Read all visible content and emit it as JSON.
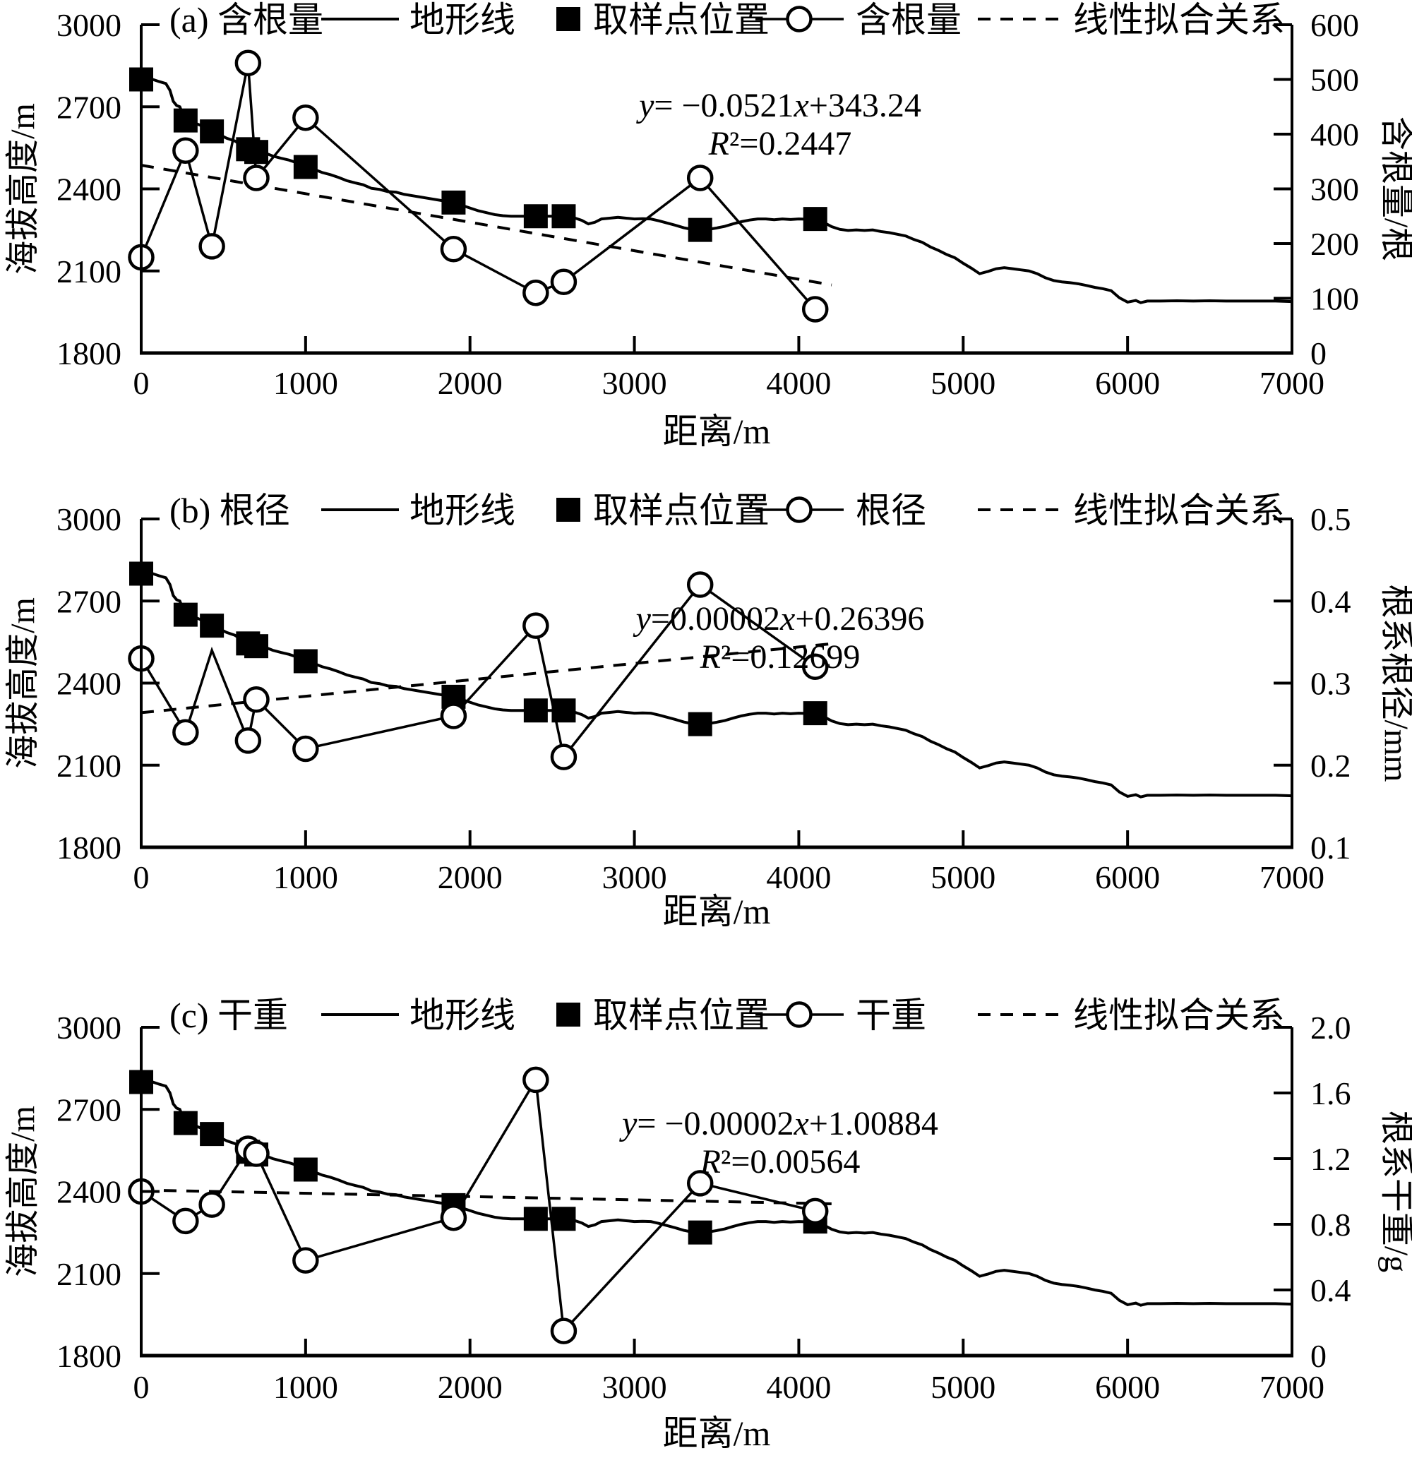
{
  "figure": {
    "background": "#ffffff",
    "ink_color": "#000000"
  },
  "shared": {
    "x_axis": {
      "label": "距离/m",
      "min": 0,
      "max": 7000,
      "ticks": [
        0,
        1000,
        2000,
        3000,
        4000,
        5000,
        6000,
        7000
      ]
    },
    "left_axis": {
      "label": "海拔高度/m",
      "min": 1800,
      "max": 3000,
      "ticks": [
        3000,
        2700,
        2400,
        2100,
        1800
      ]
    },
    "legend_terrain_label": "地形线",
    "legend_samples_label": "取样点位置",
    "legend_fit_label": "线性拟合关系",
    "terrain": {
      "x": [
        0,
        70,
        110,
        150,
        175,
        195,
        215,
        235,
        255,
        270,
        300,
        330,
        370,
        400,
        430,
        470,
        520,
        570,
        620,
        650,
        700,
        750,
        800,
        850,
        900,
        950,
        1000,
        1050,
        1100,
        1150,
        1200,
        1250,
        1300,
        1350,
        1400,
        1450,
        1500,
        1550,
        1600,
        1650,
        1700,
        1750,
        1800,
        1850,
        1900,
        1950,
        2000,
        2050,
        2100,
        2150,
        2200,
        2250,
        2350,
        2450,
        2570,
        2620,
        2680,
        2720,
        2760,
        2800,
        2850,
        2900,
        2950,
        3000,
        3050,
        3100,
        3150,
        3200,
        3250,
        3300,
        3350,
        3400,
        3450,
        3500,
        3550,
        3600,
        3650,
        3700,
        3750,
        3800,
        3850,
        3900,
        3950,
        4000,
        4050,
        4100,
        4150,
        4200,
        4250,
        4300,
        4350,
        4400,
        4450,
        4500,
        4550,
        4600,
        4650,
        4700,
        4750,
        4800,
        4850,
        4900,
        4950,
        5000,
        5050,
        5100,
        5150,
        5200,
        5250,
        5300,
        5350,
        5400,
        5450,
        5500,
        5550,
        5600,
        5650,
        5700,
        5750,
        5800,
        5850,
        5900,
        5950,
        6000,
        6050,
        6080,
        6120,
        6200,
        6300,
        6400,
        6500,
        6600,
        6700,
        6800,
        6900,
        7000
      ],
      "elevation": [
        2800,
        2800,
        2792,
        2785,
        2760,
        2720,
        2705,
        2700,
        2670,
        2650,
        2643,
        2640,
        2630,
        2620,
        2610,
        2600,
        2585,
        2575,
        2555,
        2545,
        2535,
        2532,
        2520,
        2512,
        2505,
        2495,
        2480,
        2472,
        2460,
        2452,
        2442,
        2430,
        2422,
        2415,
        2402,
        2398,
        2390,
        2388,
        2380,
        2375,
        2370,
        2365,
        2360,
        2355,
        2350,
        2340,
        2330,
        2320,
        2313,
        2306,
        2302,
        2300,
        2300,
        2300,
        2300,
        2297,
        2285,
        2272,
        2278,
        2290,
        2293,
        2296,
        2293,
        2290,
        2291,
        2290,
        2283,
        2275,
        2267,
        2258,
        2252,
        2250,
        2252,
        2257,
        2263,
        2272,
        2280,
        2286,
        2290,
        2290,
        2287,
        2290,
        2288,
        2290,
        2289,
        2290,
        2278,
        2262,
        2252,
        2248,
        2250,
        2248,
        2250,
        2244,
        2240,
        2234,
        2228,
        2215,
        2205,
        2188,
        2175,
        2160,
        2148,
        2128,
        2110,
        2090,
        2098,
        2108,
        2112,
        2108,
        2104,
        2100,
        2090,
        2075,
        2065,
        2060,
        2057,
        2053,
        2047,
        2040,
        2035,
        2028,
        2002,
        1986,
        1992,
        1984,
        1990,
        1990,
        1991,
        1990,
        1991,
        1990,
        1990,
        1990,
        1990,
        1988
      ]
    },
    "samples": {
      "x": [
        0,
        270,
        430,
        650,
        700,
        1000,
        1900,
        2400,
        2570,
        3400,
        4100
      ],
      "elevation": [
        2800,
        2650,
        2610,
        2545,
        2535,
        2480,
        2350,
        2300,
        2300,
        2250,
        2290
      ]
    }
  },
  "chart_data": [
    {
      "id": "a",
      "type": "line",
      "title": "(a) 含根量",
      "series_name": "含根量",
      "right_axis": {
        "label": "含根量/根",
        "min": 0,
        "max": 600,
        "ticks": [
          "600",
          "500",
          "400",
          "300",
          "200",
          "100",
          "0"
        ]
      },
      "series": {
        "x": [
          0,
          270,
          430,
          650,
          700,
          1000,
          1900,
          2400,
          2570,
          3400,
          4100
        ],
        "y": [
          175,
          370,
          195,
          530,
          320,
          430,
          190,
          110,
          130,
          320,
          80
        ],
        "marker": [
          true,
          true,
          true,
          true,
          true,
          true,
          true,
          true,
          true,
          true,
          true
        ]
      },
      "fit": {
        "slope": -0.0521,
        "intercept": 343.24,
        "x_range": [
          0,
          4200
        ],
        "equation": "y= −0.0521x+343.24",
        "r_squared": "R²=0.2447"
      }
    },
    {
      "id": "b",
      "type": "line",
      "title": "(b) 根径",
      "series_name": "根径",
      "right_axis": {
        "label": "根系根径/mm",
        "min": 0.1,
        "max": 0.5,
        "ticks": [
          "0.5",
          "0.4",
          "0.3",
          "0.2",
          "0.1"
        ]
      },
      "series": {
        "x": [
          0,
          270,
          430,
          650,
          700,
          1000,
          1900,
          2400,
          2570,
          3400,
          4100
        ],
        "y": [
          0.33,
          0.24,
          0.34,
          0.23,
          0.28,
          0.22,
          0.26,
          0.37,
          0.21,
          0.42,
          0.32
        ],
        "marker": [
          true,
          true,
          false,
          true,
          true,
          true,
          true,
          true,
          true,
          true,
          true
        ]
      },
      "fit": {
        "slope": 2e-05,
        "intercept": 0.26396,
        "x_range": [
          0,
          4200
        ],
        "equation": "y=0.00002x+0.26396",
        "r_squared": "R²=0.12699"
      }
    },
    {
      "id": "c",
      "type": "line",
      "title": "(c) 干重",
      "series_name": "干重",
      "right_axis": {
        "label": "根系干重/g",
        "min": 0,
        "max": 2.0,
        "ticks": [
          "2.0",
          "1.6",
          "1.2",
          "0.8",
          "0.4",
          "0"
        ]
      },
      "series": {
        "x": [
          0,
          270,
          430,
          650,
          700,
          1000,
          1900,
          2400,
          2570,
          3400,
          4100
        ],
        "y": [
          1.0,
          0.82,
          0.92,
          1.26,
          1.23,
          0.58,
          0.84,
          1.68,
          0.15,
          1.05,
          0.88
        ],
        "marker": [
          true,
          true,
          true,
          true,
          true,
          true,
          true,
          true,
          true,
          true,
          true
        ]
      },
      "fit": {
        "slope": -2e-05,
        "intercept": 1.00884,
        "x_range": [
          0,
          4200
        ],
        "equation": "y= −0.00002x+1.00884",
        "r_squared": "R²=0.00564"
      }
    }
  ]
}
